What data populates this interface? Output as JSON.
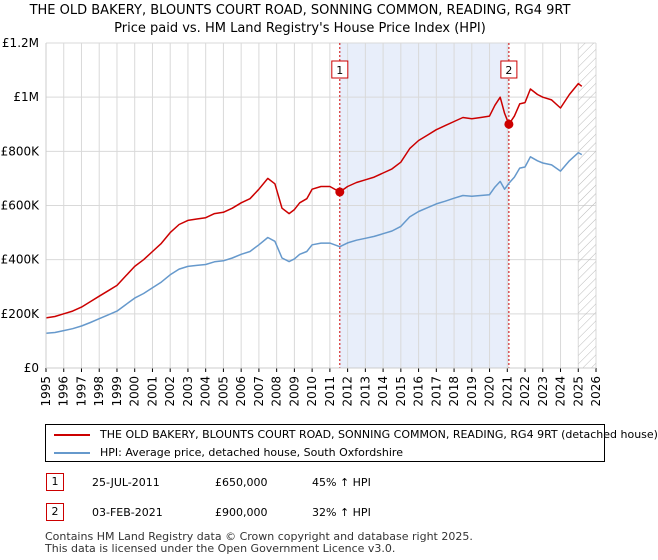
{
  "title_line1": "THE OLD BAKERY, BLOUNTS COURT ROAD, SONNING COMMON, READING, RG4 9RT",
  "title_line2": "Price paid vs. HM Land Registry's House Price Index (HPI)",
  "colors": {
    "property": "#cc0000",
    "hpi": "#6699cc",
    "marker": "#cc0000",
    "shade": "#e8eefa",
    "grid": "#d9d9d9"
  },
  "chart_data": {
    "type": "line",
    "title": "Price paid vs. HM Land Registry's House Price Index (HPI)",
    "xlabel": "",
    "ylabel": "",
    "xlim": [
      1995,
      2026
    ],
    "ylim": [
      0,
      1200000
    ],
    "x_ticks": [
      1995,
      1996,
      1997,
      1998,
      1999,
      2000,
      2001,
      2002,
      2003,
      2004,
      2005,
      2006,
      2007,
      2008,
      2009,
      2010,
      2011,
      2012,
      2013,
      2014,
      2015,
      2016,
      2017,
      2018,
      2019,
      2020,
      2021,
      2022,
      2023,
      2024,
      2025,
      2026
    ],
    "y_ticks": [
      {
        "value": 0,
        "label": "£0"
      },
      {
        "value": 200000,
        "label": "£200K"
      },
      {
        "value": 400000,
        "label": "£400K"
      },
      {
        "value": 600000,
        "label": "£600K"
      },
      {
        "value": 800000,
        "label": "£800K"
      },
      {
        "value": 1000000,
        "label": "£1M"
      },
      {
        "value": 1200000,
        "label": "£1.2M"
      }
    ],
    "shaded_range": [
      2011.56,
      2021.09
    ],
    "future_hatch_from": 2025.0,
    "series": [
      {
        "name": "THE OLD BAKERY, BLOUNTS COURT ROAD, SONNING COMMON, READING, RG4 9RT (detached house)",
        "x": [
          1995.0,
          1995.5,
          1996.0,
          1996.5,
          1997.0,
          1997.5,
          1998.0,
          1998.5,
          1999.0,
          1999.5,
          2000.0,
          2000.5,
          2001.0,
          2001.5,
          2002.0,
          2002.5,
          2003.0,
          2003.5,
          2004.0,
          2004.5,
          2005.0,
          2005.5,
          2006.0,
          2006.5,
          2007.0,
          2007.5,
          2007.9,
          2008.3,
          2008.7,
          2009.0,
          2009.3,
          2009.7,
          2010.0,
          2010.5,
          2011.0,
          2011.56,
          2012.0,
          2012.5,
          2013.0,
          2013.5,
          2014.0,
          2014.5,
          2015.0,
          2015.5,
          2016.0,
          2016.5,
          2017.0,
          2017.5,
          2018.0,
          2018.5,
          2019.0,
          2019.5,
          2020.0,
          2020.3,
          2020.6,
          2020.85,
          2021.09,
          2021.4,
          2021.7,
          2022.0,
          2022.3,
          2022.7,
          2023.0,
          2023.5,
          2024.0,
          2024.5,
          2025.0,
          2025.2
        ],
        "values": [
          185000,
          190000,
          200000,
          210000,
          225000,
          245000,
          265000,
          285000,
          305000,
          340000,
          375000,
          400000,
          430000,
          460000,
          500000,
          530000,
          545000,
          550000,
          555000,
          570000,
          575000,
          590000,
          610000,
          625000,
          660000,
          700000,
          680000,
          590000,
          570000,
          585000,
          610000,
          625000,
          660000,
          670000,
          670000,
          650000,
          670000,
          685000,
          695000,
          705000,
          720000,
          735000,
          760000,
          810000,
          840000,
          860000,
          880000,
          895000,
          910000,
          925000,
          920000,
          925000,
          930000,
          970000,
          1000000,
          940000,
          900000,
          930000,
          975000,
          980000,
          1030000,
          1010000,
          1000000,
          990000,
          960000,
          1010000,
          1050000,
          1040000
        ]
      },
      {
        "name": "HPI: Average price, detached house, South Oxfordshire",
        "x": [
          1995.0,
          1995.5,
          1996.0,
          1996.5,
          1997.0,
          1997.5,
          1998.0,
          1998.5,
          1999.0,
          1999.5,
          2000.0,
          2000.5,
          2001.0,
          2001.5,
          2002.0,
          2002.5,
          2003.0,
          2003.5,
          2004.0,
          2004.5,
          2005.0,
          2005.5,
          2006.0,
          2006.5,
          2007.0,
          2007.5,
          2007.9,
          2008.3,
          2008.7,
          2009.0,
          2009.3,
          2009.7,
          2010.0,
          2010.5,
          2011.0,
          2011.56,
          2012.0,
          2012.5,
          2013.0,
          2013.5,
          2014.0,
          2014.5,
          2015.0,
          2015.5,
          2016.0,
          2016.5,
          2017.0,
          2017.5,
          2018.0,
          2018.5,
          2019.0,
          2019.5,
          2020.0,
          2020.3,
          2020.6,
          2020.85,
          2021.09,
          2021.4,
          2021.7,
          2022.0,
          2022.3,
          2022.7,
          2023.0,
          2023.5,
          2024.0,
          2024.5,
          2025.0,
          2025.2
        ],
        "values": [
          128000,
          131000,
          138000,
          145000,
          155000,
          168000,
          182000,
          196000,
          210000,
          234000,
          258000,
          275000,
          296000,
          317000,
          344000,
          365000,
          375000,
          379000,
          382000,
          392000,
          396000,
          406000,
          420000,
          430000,
          455000,
          482000,
          468000,
          406000,
          393000,
          403000,
          420000,
          430000,
          455000,
          461000,
          461000,
          448000,
          462000,
          472000,
          479000,
          486000,
          496000,
          506000,
          523000,
          558000,
          578000,
          592000,
          606000,
          616000,
          627000,
          637000,
          634000,
          637000,
          640000,
          668000,
          689000,
          660000,
          682000,
          705000,
          738000,
          742000,
          780000,
          765000,
          757000,
          750000,
          727000,
          765000,
          795000,
          788000
        ]
      }
    ],
    "annotations": [
      {
        "label": "1",
        "x": 2011.56,
        "y": 650000
      },
      {
        "label": "2",
        "x": 2021.09,
        "y": 900000
      }
    ]
  },
  "legend": [
    {
      "label": "THE OLD BAKERY, BLOUNTS COURT ROAD, SONNING COMMON, READING, RG4 9RT (detached house)",
      "color": "#cc0000"
    },
    {
      "label": "HPI: Average price, detached house, South Oxfordshire",
      "color": "#6699cc"
    }
  ],
  "sales": [
    {
      "num": "1",
      "date": "25-JUL-2011",
      "price": "£650,000",
      "hpi": "45% ↑ HPI"
    },
    {
      "num": "2",
      "date": "03-FEB-2021",
      "price": "£900,000",
      "hpi": "32% ↑ HPI"
    }
  ],
  "footer_line1": "Contains HM Land Registry data © Crown copyright and database right 2025.",
  "footer_line2": "This data is licensed under the Open Government Licence v3.0."
}
